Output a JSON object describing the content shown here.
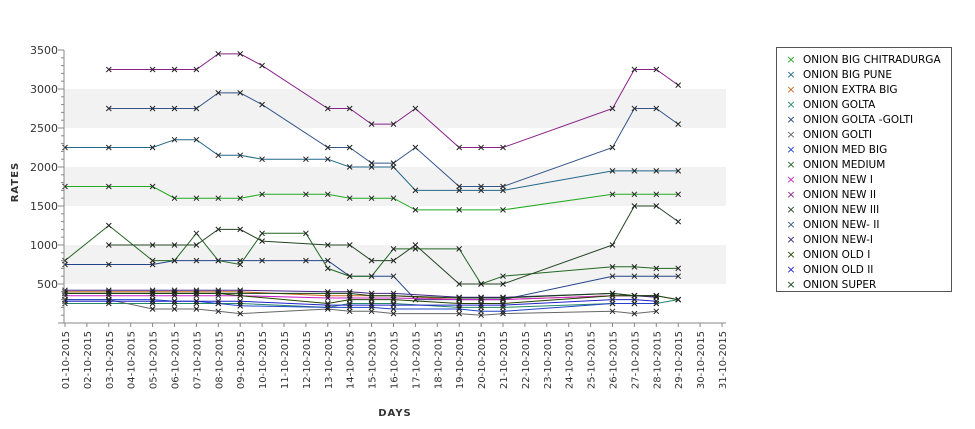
{
  "chart_data": {
    "type": "line",
    "xlabel": "DAYS",
    "ylabel": "RATES",
    "ylim": [
      0,
      3500
    ],
    "yticks": [
      500,
      1000,
      1500,
      2000,
      2500,
      3000,
      3500
    ],
    "categories": [
      "01-10-2015",
      "02-10-2015",
      "03-10-2015",
      "04-10-2015",
      "05-10-2015",
      "06-10-2015",
      "07-10-2015",
      "08-10-2015",
      "09-10-2015",
      "10-10-2015",
      "11-10-2015",
      "12-10-2015",
      "13-10-2015",
      "14-10-2015",
      "15-10-2015",
      "16-10-2015",
      "17-10-2015",
      "18-10-2015",
      "19-10-2015",
      "20-10-2015",
      "21-10-2015",
      "22-10-2015",
      "23-10-2015",
      "24-10-2015",
      "25-10-2015",
      "26-10-2015",
      "27-10-2015",
      "28-10-2015",
      "29-10-2015",
      "30-10-2015",
      "31-10-2015"
    ],
    "grid": "alternating horizontal bands",
    "legend_position": "right",
    "series": [
      {
        "name": "ONION BIG CHITRADURGA",
        "color": "#22aa22",
        "points": [
          [
            1,
            1750
          ],
          [
            3,
            1750
          ],
          [
            5,
            1750
          ],
          [
            6,
            1600
          ],
          [
            7,
            1600
          ],
          [
            8,
            1600
          ],
          [
            9,
            1600
          ],
          [
            10,
            1650
          ],
          [
            12,
            1650
          ],
          [
            13,
            1650
          ],
          [
            14,
            1600
          ],
          [
            15,
            1600
          ],
          [
            16,
            1600
          ],
          [
            17,
            1450
          ],
          [
            19,
            1450
          ],
          [
            21,
            1450
          ],
          [
            26,
            1650
          ],
          [
            27,
            1650
          ],
          [
            28,
            1650
          ],
          [
            29,
            1650
          ]
        ]
      },
      {
        "name": "ONION BIG PUNE",
        "color": "#226688",
        "points": [
          [
            1,
            2250
          ],
          [
            3,
            2250
          ],
          [
            5,
            2250
          ],
          [
            6,
            2350
          ],
          [
            7,
            2350
          ],
          [
            8,
            2150
          ],
          [
            9,
            2150
          ],
          [
            10,
            2100
          ],
          [
            12,
            2100
          ],
          [
            13,
            2100
          ],
          [
            14,
            2000
          ],
          [
            15,
            2000
          ],
          [
            16,
            2000
          ],
          [
            17,
            1700
          ],
          [
            19,
            1700
          ],
          [
            20,
            1700
          ],
          [
            21,
            1700
          ],
          [
            26,
            1950
          ],
          [
            27,
            1950
          ],
          [
            28,
            1950
          ],
          [
            29,
            1950
          ]
        ]
      },
      {
        "name": "ONION EXTRA BIG",
        "color": "#cc6622",
        "points": [
          [
            1,
            400
          ],
          [
            3,
            400
          ],
          [
            5,
            400
          ],
          [
            6,
            400
          ],
          [
            7,
            400
          ],
          [
            8,
            400
          ],
          [
            9,
            400
          ],
          [
            13,
            350
          ],
          [
            14,
            350
          ],
          [
            15,
            350
          ],
          [
            16,
            350
          ],
          [
            19,
            300
          ],
          [
            20,
            300
          ],
          [
            21,
            300
          ],
          [
            26,
            350
          ],
          [
            27,
            350
          ],
          [
            28,
            350
          ],
          [
            29,
            300
          ]
        ]
      },
      {
        "name": "ONION GOLTA",
        "color": "#228866",
        "points": [
          [
            1,
            250
          ],
          [
            3,
            250
          ],
          [
            5,
            250
          ],
          [
            6,
            250
          ],
          [
            7,
            250
          ],
          [
            8,
            250
          ],
          [
            9,
            250
          ],
          [
            13,
            200
          ],
          [
            14,
            250
          ],
          [
            15,
            250
          ],
          [
            16,
            250
          ],
          [
            19,
            200
          ],
          [
            20,
            200
          ],
          [
            21,
            200
          ],
          [
            26,
            250
          ],
          [
            27,
            250
          ],
          [
            28,
            250
          ],
          [
            29,
            300
          ]
        ]
      },
      {
        "name": "ONION GOLTA -GOLTI",
        "color": "#224488",
        "points": [
          [
            1,
            750
          ],
          [
            3,
            750
          ],
          [
            5,
            750
          ],
          [
            6,
            800
          ],
          [
            7,
            800
          ],
          [
            8,
            800
          ],
          [
            9,
            800
          ],
          [
            10,
            800
          ],
          [
            12,
            800
          ],
          [
            13,
            800
          ],
          [
            14,
            600
          ],
          [
            15,
            600
          ],
          [
            16,
            600
          ],
          [
            17,
            300
          ],
          [
            19,
            300
          ],
          [
            21,
            300
          ],
          [
            26,
            600
          ],
          [
            27,
            600
          ],
          [
            28,
            600
          ],
          [
            29,
            600
          ]
        ]
      },
      {
        "name": "ONION GOLTI",
        "color": "#666666",
        "points": [
          [
            1,
            300
          ],
          [
            3,
            300
          ],
          [
            5,
            180
          ],
          [
            6,
            180
          ],
          [
            7,
            180
          ],
          [
            8,
            150
          ],
          [
            9,
            120
          ],
          [
            13,
            180
          ],
          [
            14,
            150
          ],
          [
            15,
            150
          ],
          [
            16,
            120
          ],
          [
            19,
            120
          ],
          [
            20,
            100
          ],
          [
            21,
            120
          ],
          [
            26,
            150
          ],
          [
            27,
            120
          ],
          [
            28,
            150
          ]
        ]
      },
      {
        "name": "ONION MED BIG",
        "color": "#2244cc",
        "points": [
          [
            1,
            300
          ],
          [
            3,
            300
          ],
          [
            5,
            300
          ],
          [
            6,
            280
          ],
          [
            7,
            280
          ],
          [
            8,
            250
          ],
          [
            9,
            220
          ],
          [
            13,
            200
          ],
          [
            14,
            200
          ],
          [
            15,
            200
          ],
          [
            16,
            180
          ],
          [
            19,
            180
          ],
          [
            20,
            150
          ],
          [
            21,
            150
          ],
          [
            26,
            250
          ],
          [
            27,
            250
          ],
          [
            28,
            250
          ]
        ]
      },
      {
        "name": "ONION MEDIUM",
        "color": "#226622",
        "points": [
          [
            1,
            800
          ],
          [
            3,
            1250
          ],
          [
            5,
            800
          ],
          [
            6,
            800
          ],
          [
            7,
            1150
          ],
          [
            8,
            800
          ],
          [
            9,
            750
          ],
          [
            10,
            1150
          ],
          [
            12,
            1150
          ],
          [
            13,
            700
          ],
          [
            14,
            600
          ],
          [
            15,
            600
          ],
          [
            16,
            950
          ],
          [
            17,
            950
          ],
          [
            19,
            950
          ],
          [
            20,
            500
          ],
          [
            21,
            600
          ],
          [
            26,
            720
          ],
          [
            27,
            720
          ],
          [
            28,
            700
          ],
          [
            29,
            700
          ]
        ]
      },
      {
        "name": "ONION NEW I",
        "color": "#cc22cc",
        "points": [
          [
            1,
            350
          ],
          [
            3,
            350
          ],
          [
            5,
            350
          ],
          [
            6,
            350
          ],
          [
            7,
            350
          ],
          [
            8,
            350
          ],
          [
            9,
            350
          ],
          [
            13,
            320
          ],
          [
            14,
            320
          ],
          [
            15,
            320
          ],
          [
            16,
            320
          ],
          [
            19,
            300
          ],
          [
            20,
            300
          ],
          [
            21,
            300
          ],
          [
            26,
            350
          ],
          [
            27,
            350
          ],
          [
            28,
            350
          ]
        ]
      },
      {
        "name": "ONION NEW II",
        "color": "#882288",
        "points": [
          [
            3,
            3250
          ],
          [
            5,
            3250
          ],
          [
            6,
            3250
          ],
          [
            7,
            3250
          ],
          [
            8,
            3450
          ],
          [
            9,
            3450
          ],
          [
            10,
            3300
          ],
          [
            13,
            2750
          ],
          [
            14,
            2750
          ],
          [
            15,
            2550
          ],
          [
            16,
            2550
          ],
          [
            17,
            2750
          ],
          [
            19,
            2250
          ],
          [
            20,
            2250
          ],
          [
            21,
            2250
          ],
          [
            26,
            2750
          ],
          [
            27,
            3250
          ],
          [
            28,
            3250
          ],
          [
            29,
            3050
          ]
        ]
      },
      {
        "name": "ONION NEW III",
        "color": "#224422",
        "points": [
          [
            3,
            1000
          ],
          [
            5,
            1000
          ],
          [
            6,
            1000
          ],
          [
            7,
            1000
          ],
          [
            8,
            1200
          ],
          [
            9,
            1200
          ],
          [
            10,
            1050
          ],
          [
            13,
            1000
          ],
          [
            14,
            1000
          ],
          [
            15,
            800
          ],
          [
            16,
            800
          ],
          [
            17,
            1000
          ],
          [
            19,
            500
          ],
          [
            20,
            500
          ],
          [
            21,
            500
          ],
          [
            26,
            1000
          ],
          [
            27,
            1500
          ],
          [
            28,
            1500
          ],
          [
            29,
            1300
          ]
        ]
      },
      {
        "name": "ONION NEW- II",
        "color": "#335588",
        "points": [
          [
            3,
            2750
          ],
          [
            5,
            2750
          ],
          [
            6,
            2750
          ],
          [
            7,
            2750
          ],
          [
            8,
            2950
          ],
          [
            9,
            2950
          ],
          [
            10,
            2800
          ],
          [
            13,
            2250
          ],
          [
            14,
            2250
          ],
          [
            15,
            2050
          ],
          [
            16,
            2050
          ],
          [
            17,
            2250
          ],
          [
            19,
            1750
          ],
          [
            20,
            1750
          ],
          [
            21,
            1750
          ],
          [
            26,
            2250
          ],
          [
            27,
            2750
          ],
          [
            28,
            2750
          ],
          [
            29,
            2550
          ]
        ]
      },
      {
        "name": "ONION NEW-I",
        "color": "#442288",
        "points": [
          [
            1,
            420
          ],
          [
            3,
            420
          ],
          [
            5,
            420
          ],
          [
            6,
            420
          ],
          [
            7,
            420
          ],
          [
            8,
            420
          ],
          [
            9,
            420
          ],
          [
            13,
            400
          ],
          [
            14,
            400
          ],
          [
            15,
            380
          ],
          [
            16,
            380
          ],
          [
            19,
            330
          ],
          [
            20,
            330
          ],
          [
            21,
            330
          ],
          [
            26,
            380
          ],
          [
            27,
            350
          ],
          [
            28,
            330
          ]
        ]
      },
      {
        "name": "ONION OLD I",
        "color": "#224400",
        "points": [
          [
            1,
            380
          ],
          [
            3,
            380
          ],
          [
            5,
            380
          ],
          [
            6,
            380
          ],
          [
            7,
            380
          ],
          [
            8,
            380
          ],
          [
            9,
            350
          ],
          [
            13,
            250
          ],
          [
            14,
            300
          ],
          [
            15,
            300
          ],
          [
            16,
            300
          ],
          [
            19,
            250
          ],
          [
            20,
            250
          ],
          [
            21,
            250
          ],
          [
            26,
            350
          ],
          [
            27,
            350
          ],
          [
            28,
            350
          ]
        ]
      },
      {
        "name": "ONION OLD II",
        "color": "#2222cc",
        "points": [
          [
            1,
            280
          ],
          [
            3,
            280
          ],
          [
            5,
            280
          ],
          [
            6,
            280
          ],
          [
            7,
            280
          ],
          [
            8,
            280
          ],
          [
            9,
            280
          ],
          [
            13,
            230
          ],
          [
            14,
            230
          ],
          [
            15,
            230
          ],
          [
            16,
            230
          ],
          [
            19,
            230
          ],
          [
            20,
            230
          ],
          [
            21,
            230
          ],
          [
            26,
            300
          ],
          [
            27,
            300
          ],
          [
            28,
            280
          ]
        ]
      },
      {
        "name": "ONION SUPER",
        "color": "#114411",
        "points": [
          [
            1,
            380
          ],
          [
            3,
            380
          ],
          [
            5,
            380
          ],
          [
            6,
            380
          ],
          [
            7,
            380
          ],
          [
            8,
            380
          ],
          [
            9,
            380
          ],
          [
            13,
            380
          ],
          [
            14,
            380
          ],
          [
            15,
            350
          ],
          [
            16,
            350
          ],
          [
            19,
            320
          ],
          [
            20,
            320
          ],
          [
            21,
            320
          ],
          [
            26,
            380
          ],
          [
            27,
            350
          ],
          [
            28,
            350
          ],
          [
            29,
            300
          ]
        ]
      }
    ]
  }
}
